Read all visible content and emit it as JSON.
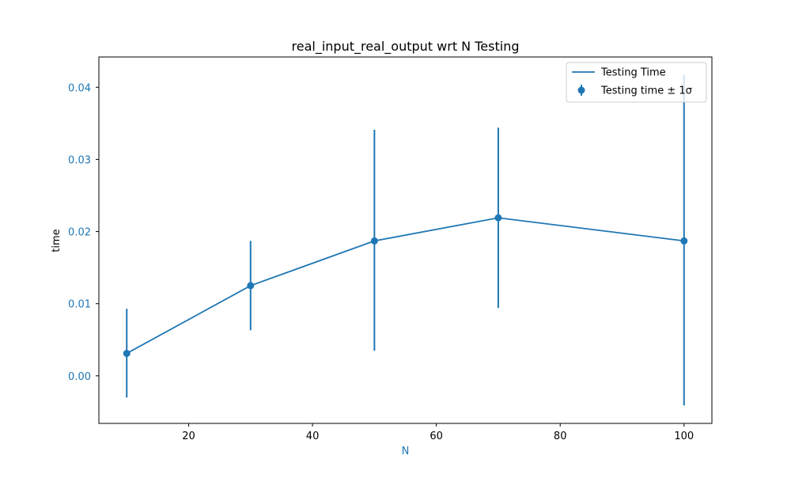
{
  "chart_data": {
    "type": "line",
    "title": "real_input_real_output wrt N Testing",
    "xlabel": "N",
    "ylabel": "time",
    "x": [
      10,
      30,
      50,
      70,
      100
    ],
    "series": [
      {
        "name": "Testing Time",
        "kind": "line",
        "values": [
          0.0031,
          0.0125,
          0.0187,
          0.0219,
          0.0187
        ]
      },
      {
        "name": "Testing time ± 1σ",
        "kind": "errorbar",
        "values": [
          0.0031,
          0.0125,
          0.0187,
          0.0219,
          0.0187
        ],
        "lower": [
          -0.003,
          0.0063,
          0.0035,
          0.0094,
          -0.0041
        ],
        "upper": [
          0.0093,
          0.0187,
          0.0341,
          0.0344,
          0.0417
        ]
      }
    ],
    "xlim": [
      5.5,
      104.5
    ],
    "ylim": [
      -0.0066,
      0.0442
    ],
    "xticks": [
      20,
      40,
      60,
      80,
      100
    ],
    "yticks": [
      0.0,
      0.01,
      0.02,
      0.03,
      0.04
    ],
    "xtick_labels": [
      "20",
      "40",
      "60",
      "80",
      "100"
    ],
    "ytick_labels": [
      "0.00",
      "0.01",
      "0.02",
      "0.03",
      "0.04"
    ],
    "grid": false,
    "legend_position": "top-right",
    "colors": {
      "series": "#1f77b4",
      "xlabel": "#1f77b4",
      "yticks": "#1f77b4",
      "ylabel": "#000000",
      "xticks": "#000000",
      "axes": "#000000"
    }
  }
}
